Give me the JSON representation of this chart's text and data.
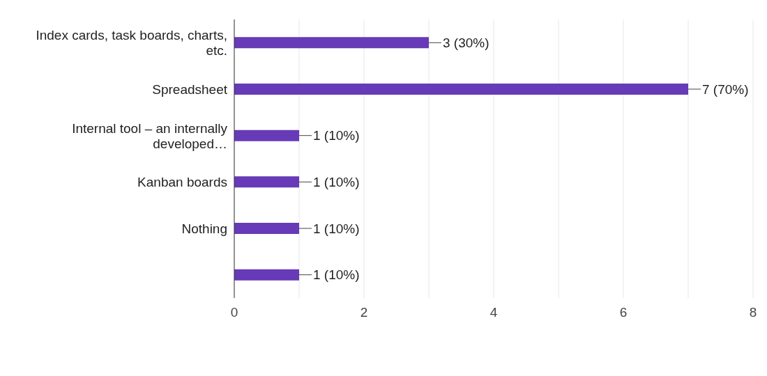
{
  "chart_data": {
    "type": "bar",
    "orientation": "horizontal",
    "categories": [
      "Index cards, task boards, charts, etc.",
      "Spreadsheet",
      "Internal tool – an internally developed…",
      "Kanban boards",
      "Nothing",
      null
    ],
    "values": [
      3,
      7,
      1,
      1,
      1,
      1
    ],
    "value_labels": [
      "3 (30%)",
      "7 (70%)",
      "1 (10%)",
      "1 (10%)",
      "1 (10%)",
      "1 (10%)"
    ],
    "color": "#673ab7",
    "xlim": [
      0,
      8
    ],
    "xticks": [
      0,
      {
        "value": 1,
        "label": null
      },
      2,
      {
        "value": 3,
        "label": null
      },
      4,
      {
        "value": 5,
        "label": null
      },
      6,
      {
        "value": 7,
        "label": null
      },
      8
    ],
    "grid": "x"
  }
}
